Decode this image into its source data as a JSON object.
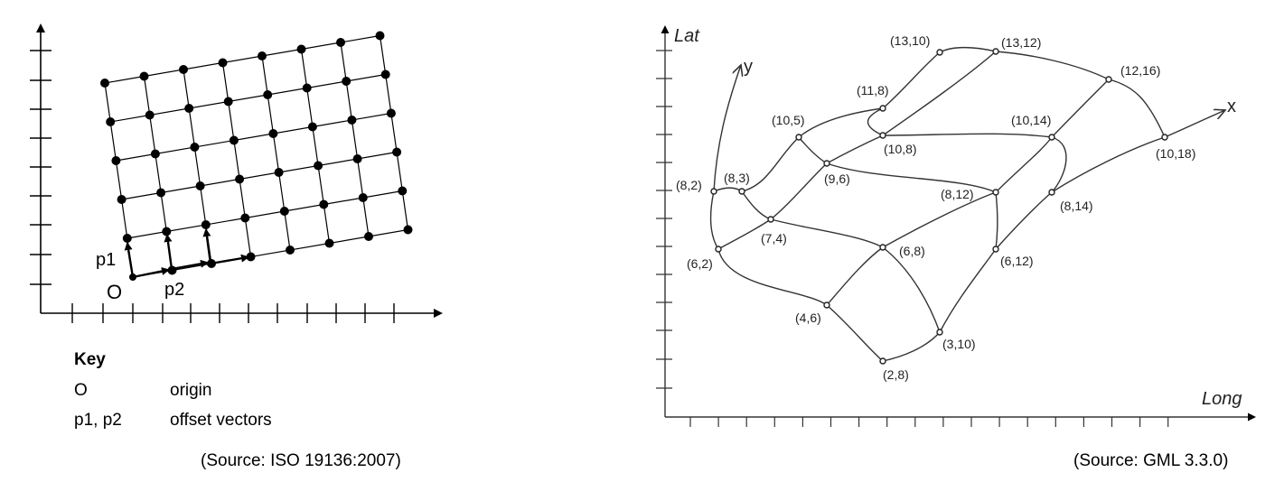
{
  "left_figure": {
    "origin_label": "O",
    "p1_label": "p1",
    "p2_label": "p2",
    "key": {
      "title": "Key",
      "rows": [
        {
          "symbol": "O",
          "meaning": "origin"
        },
        {
          "symbol": "p1, p2",
          "meaning": "offset vectors"
        }
      ]
    },
    "source": "(Source: ISO 19136:2007)"
  },
  "right_figure": {
    "lat_label": "Lat",
    "long_label": "Long",
    "x_label": "x",
    "y_label": "y",
    "points": [
      "(13,10)",
      "(13,12)",
      "(12,16)",
      "(11,8)",
      "(10,5)",
      "(10,14)",
      "(10,8)",
      "(10,18)",
      "(8,2)",
      "(8,3)",
      "(9,6)",
      "(8,12)",
      "(8,14)",
      "(7,4)",
      "(6,8)",
      "(6,2)",
      "(6,12)",
      "(4,6)",
      "(3,10)",
      "(2,8)"
    ],
    "source": "(Source: GML 3.3.0)"
  }
}
